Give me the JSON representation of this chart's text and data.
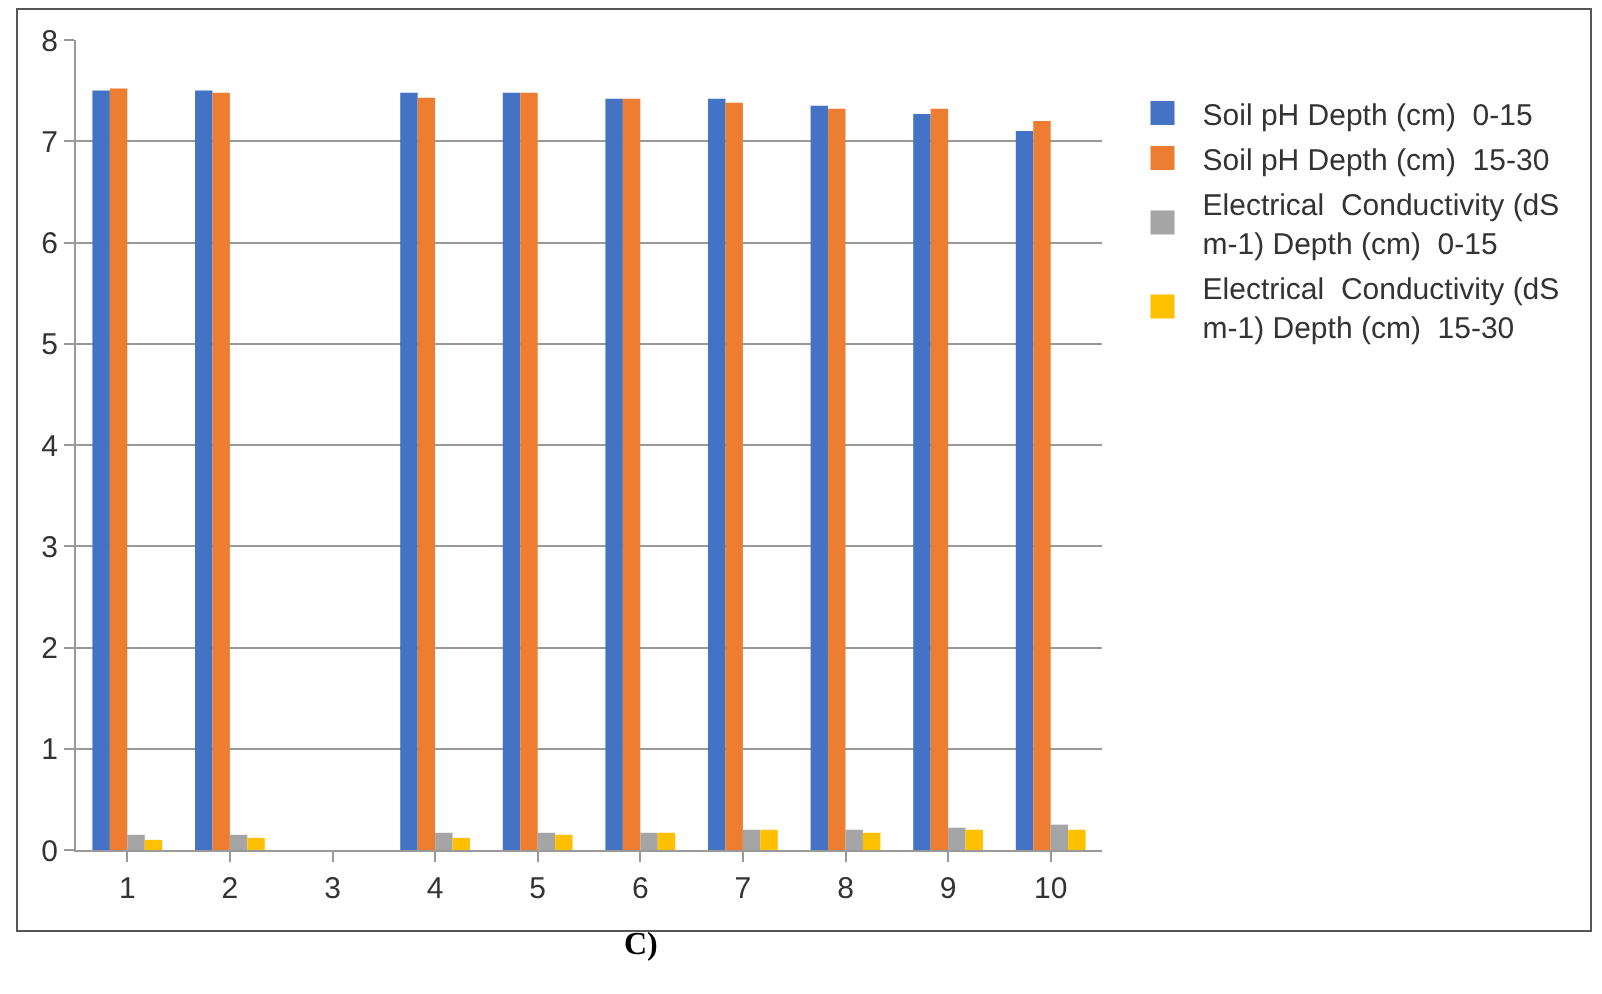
{
  "chart_data": {
    "type": "bar",
    "title": "C)",
    "categories": [
      "1",
      "2",
      "3",
      "4",
      "5",
      "6",
      "7",
      "8",
      "9",
      "10"
    ],
    "series": [
      {
        "name": "Soil pH Depth (cm)  0-15",
        "color": "#4472c4",
        "values": [
          7.5,
          7.5,
          null,
          7.48,
          7.48,
          7.42,
          7.42,
          7.35,
          7.27,
          7.1
        ]
      },
      {
        "name": "Soil pH Depth (cm)  15-30",
        "color": "#ed7d31",
        "values": [
          7.52,
          7.48,
          null,
          7.43,
          7.48,
          7.42,
          7.38,
          7.32,
          7.32,
          7.2
        ]
      },
      {
        "name": "Electrical  Conductivity (dS m-1) Depth (cm)  0-15",
        "color": "#a5a5a5",
        "values": [
          0.15,
          0.15,
          null,
          0.17,
          0.17,
          0.17,
          0.2,
          0.2,
          0.22,
          0.25
        ]
      },
      {
        "name": "Electrical  Conductivity (dS m-1) Depth (cm)  15-30",
        "color": "#ffc000",
        "values": [
          0.1,
          0.12,
          null,
          0.12,
          0.15,
          0.17,
          0.2,
          0.17,
          0.2,
          0.2
        ]
      }
    ],
    "ylim": [
      0,
      8
    ],
    "yticks": [
      0,
      1,
      2,
      3,
      4,
      5,
      6,
      7,
      8
    ],
    "grid": "y",
    "legend": "right"
  }
}
